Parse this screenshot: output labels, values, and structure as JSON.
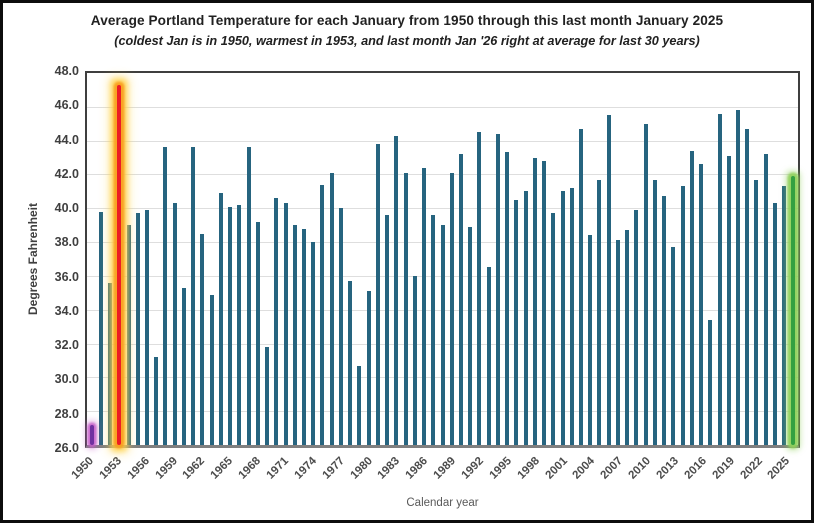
{
  "title": "Average Portland Temperature for each January from 1950 through this last month January 2025",
  "subtitle": "(coldest Jan is in 1950, warmest in 1953, and last month Jan '26 right at average for last 30 years)",
  "y_axis": {
    "label": "Degrees Fahrenheit",
    "ticks": [
      "48.0",
      "46.0",
      "44.0",
      "42.0",
      "40.0",
      "38.0",
      "36.0",
      "34.0",
      "32.0",
      "30.0",
      "28.0",
      "26.0"
    ]
  },
  "x_axis": {
    "label": "Calendar year",
    "tick_years": [
      1950,
      1953,
      1956,
      1959,
      1962,
      1965,
      1968,
      1971,
      1974,
      1977,
      1980,
      1983,
      1986,
      1989,
      1992,
      1995,
      1998,
      2001,
      2004,
      2007,
      2010,
      2013,
      2016,
      2019,
      2022,
      2025
    ]
  },
  "colors": {
    "bar": "#26647F",
    "gridline": "#DEDEDE",
    "axis_text": "#3F3F3F",
    "coldest_bar": "#7030A0",
    "coldest_glow": "#C45BC8",
    "warmest_bar": "#EC1C24",
    "warmest_glow_inner": "#F89C1C",
    "warmest_glow_outer": "#FFD34D",
    "latest_bar": "#34A041",
    "latest_glow": "#8FD05A"
  },
  "chart_data": {
    "type": "bar",
    "title": "Average Portland Temperature for each January from 1950 through this last month January 2025",
    "xlabel": "Calendar year",
    "ylabel": "Degrees Fahrenheit",
    "ylim": [
      26,
      48
    ],
    "grid": true,
    "x": [
      1950,
      1951,
      1952,
      1953,
      1954,
      1955,
      1956,
      1957,
      1958,
      1959,
      1960,
      1961,
      1962,
      1963,
      1964,
      1965,
      1966,
      1967,
      1968,
      1969,
      1970,
      1971,
      1972,
      1973,
      1974,
      1975,
      1976,
      1977,
      1978,
      1979,
      1980,
      1981,
      1982,
      1983,
      1984,
      1985,
      1986,
      1987,
      1988,
      1989,
      1990,
      1991,
      1992,
      1993,
      1994,
      1995,
      1996,
      1997,
      1998,
      1999,
      2000,
      2001,
      2002,
      2003,
      2004,
      2005,
      2006,
      2007,
      2008,
      2009,
      2010,
      2011,
      2012,
      2013,
      2014,
      2015,
      2016,
      2017,
      2018,
      2019,
      2020,
      2021,
      2022,
      2023,
      2024,
      2025,
      2026
    ],
    "values": [
      27.2,
      39.8,
      35.6,
      47.3,
      39.0,
      39.7,
      39.9,
      31.2,
      43.6,
      40.3,
      35.3,
      43.6,
      38.5,
      34.9,
      40.9,
      40.1,
      40.2,
      43.6,
      39.2,
      31.8,
      40.6,
      40.3,
      39.0,
      38.8,
      38.0,
      41.4,
      42.1,
      40.0,
      35.7,
      30.7,
      35.1,
      43.8,
      39.6,
      44.3,
      42.1,
      36.0,
      42.4,
      39.6,
      39.0,
      42.1,
      43.2,
      38.9,
      44.5,
      36.5,
      44.4,
      43.3,
      40.5,
      41.0,
      43.0,
      42.8,
      39.7,
      41.0,
      41.2,
      44.7,
      38.4,
      41.7,
      45.5,
      38.1,
      38.7,
      39.9,
      45.0,
      41.7,
      40.7,
      37.7,
      41.3,
      43.4,
      42.6,
      33.4,
      45.6,
      43.1,
      45.8,
      44.7,
      41.7,
      43.2,
      40.3,
      41.3,
      41.9
    ],
    "special_bars": [
      {
        "year": 1950,
        "bar_color": "#7030A0",
        "glow_color": "#C45BC8",
        "glow_strength": "small"
      },
      {
        "year": 1953,
        "bar_color": "#EC1C24",
        "glow_color": "#F89C1C",
        "glow_color_outer": "#FFD34D",
        "glow_strength": "large"
      },
      {
        "year": 2026,
        "bar_color": "#34A041",
        "glow_color": "#8FD05A",
        "glow_strength": "medium"
      }
    ]
  }
}
